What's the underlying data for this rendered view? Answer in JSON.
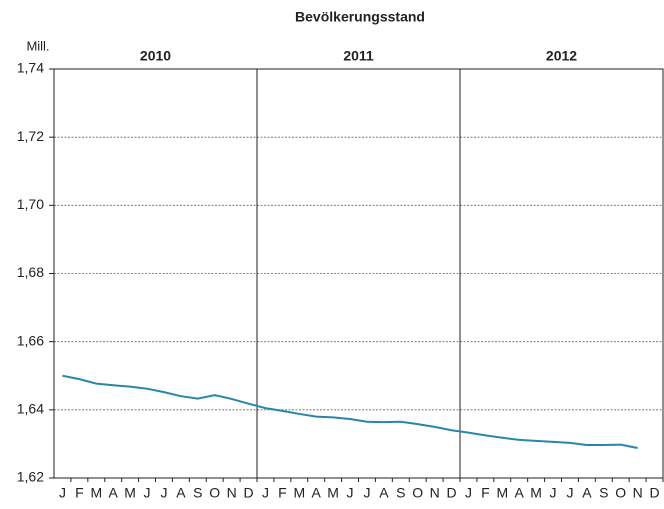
{
  "chart_data": {
    "type": "line",
    "title": "Bevölkerungsstand",
    "y_unit_label": "Mill.",
    "years": [
      "2010",
      "2011",
      "2012"
    ],
    "categories": [
      "J",
      "F",
      "M",
      "A",
      "M",
      "J",
      "J",
      "A",
      "S",
      "O",
      "N",
      "D",
      "J",
      "F",
      "M",
      "A",
      "M",
      "J",
      "J",
      "A",
      "S",
      "O",
      "N",
      "D",
      "J",
      "F",
      "M",
      "A",
      "M",
      "J",
      "J",
      "A",
      "S",
      "O",
      "N",
      "D"
    ],
    "series": [
      {
        "name": "Bevölkerungsstand",
        "color": "#2a86a8",
        "values": [
          1.65,
          1.649,
          1.6477,
          1.6472,
          1.6468,
          1.6462,
          1.6452,
          1.644,
          1.6433,
          1.6443,
          1.6432,
          1.6418,
          1.6405,
          1.6397,
          1.6388,
          1.638,
          1.6378,
          1.6373,
          1.6365,
          1.6364,
          1.6365,
          1.6358,
          1.635,
          1.634,
          1.6333,
          1.6325,
          1.6318,
          1.6312,
          1.6309,
          1.6306,
          1.6303,
          1.6297,
          1.6297,
          1.6298,
          1.6288,
          null
        ]
      }
    ],
    "ylim": [
      1.62,
      1.74
    ],
    "yticks": [
      {
        "value": 1.62,
        "label": "1,62"
      },
      {
        "value": 1.64,
        "label": "1,64"
      },
      {
        "value": 1.66,
        "label": "1,66"
      },
      {
        "value": 1.68,
        "label": "1,68"
      },
      {
        "value": 1.7,
        "label": "1,70"
      },
      {
        "value": 1.72,
        "label": "1,72"
      },
      {
        "value": 1.74,
        "label": "1,74"
      }
    ],
    "grid": true
  }
}
